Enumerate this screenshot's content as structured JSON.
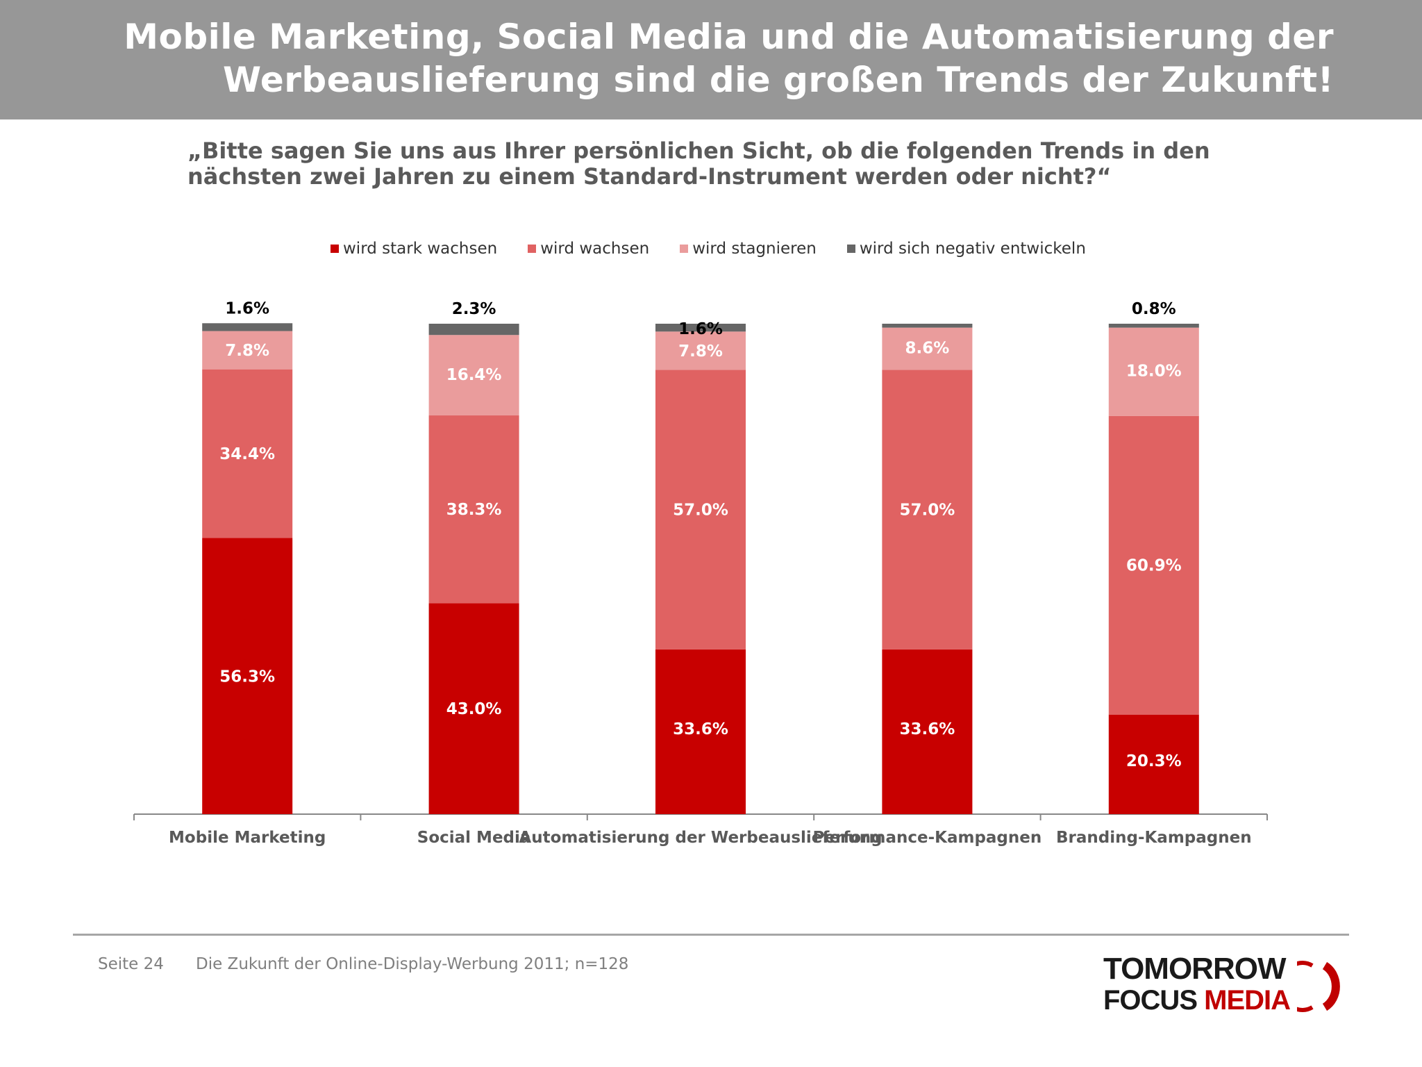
{
  "header": {
    "title_line1": "Mobile Marketing, Social Media und die Automatisierung der",
    "title_line2": "Werbeauslieferung sind die großen Trends der Zukunft!"
  },
  "question": {
    "line1": "„Bitte sagen Sie uns aus Ihrer persönlichen Sicht, ob die folgenden Trends in den",
    "line2": "nächsten zwei Jahren zu einem Standard-Instrument werden oder nicht?“"
  },
  "colors": {
    "header_bg": "#979797",
    "stark_wachsen": "#c80000",
    "wachsen": "#e06262",
    "stagnieren": "#ea9c9c",
    "negativ": "#666666"
  },
  "chart_data": {
    "type": "bar",
    "stacked": true,
    "categories": [
      "Mobile Marketing",
      "Social Media",
      "Automatisierung der Werbeauslieferung",
      "Performance-Kampagnen",
      "Branding-Kampagnen"
    ],
    "series": [
      {
        "name": "wird stark wachsen",
        "color": "#c80000",
        "values": [
          56.3,
          43.0,
          33.6,
          33.6,
          20.3
        ],
        "labels": [
          "56.3%",
          "43.0%",
          "33.6%",
          "33.6%",
          "20.3%"
        ]
      },
      {
        "name": "wird wachsen",
        "color": "#e06262",
        "values": [
          34.4,
          38.3,
          57.0,
          57.0,
          60.9
        ],
        "labels": [
          "34.4%",
          "38.3%",
          "57.0%",
          "57.0%",
          "60.9%"
        ]
      },
      {
        "name": "wird stagnieren",
        "color": "#ea9c9c",
        "values": [
          7.8,
          16.4,
          7.8,
          8.6,
          18.0
        ],
        "labels": [
          "7.8%",
          "16.4%",
          "7.8%",
          "8.6%",
          "18.0%"
        ]
      },
      {
        "name": "wird sich negativ entwickeln",
        "color": "#666666",
        "values": [
          1.6,
          2.3,
          1.6,
          0.8,
          0.8
        ],
        "labels": [
          "1.6%",
          "2.3%",
          "1.6%",
          "",
          "0.8%"
        ]
      }
    ],
    "ylim": [
      0,
      100
    ],
    "legend_position": "top",
    "grid": false
  },
  "footer": {
    "page": "Seite 24",
    "source": "Die Zukunft der Online-Display-Werbung 2011; n=128"
  },
  "logo": {
    "line1": "TOMORROW",
    "line2a": "FOCUS",
    "line2b": "MEDIA"
  }
}
